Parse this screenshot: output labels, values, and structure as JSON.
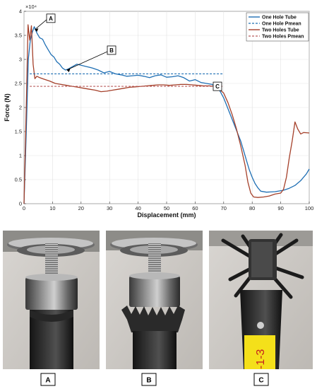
{
  "chart_data": {
    "type": "line",
    "xlabel": "Displacement (mm)",
    "ylabel": "Force (N)",
    "y_multiplier": "×10⁴",
    "xlim": [
      0,
      100
    ],
    "ylim": [
      0,
      4
    ],
    "xticks": [
      "0",
      "10",
      "20",
      "30",
      "40",
      "50",
      "60",
      "70",
      "80",
      "90",
      "100"
    ],
    "yticks": [
      "0",
      "0.5",
      "1",
      "1.5",
      "2",
      "2.5",
      "3",
      "3.5",
      "4"
    ],
    "legend_position": "top-right",
    "series": [
      {
        "name": "One Hole Tube",
        "color": "#1f6fb4",
        "style": "solid",
        "x": [
          0,
          0.8,
          1.5,
          2.2,
          3.0,
          3.6,
          4.5,
          5.5,
          6.5,
          7.5,
          8.5,
          9.5,
          10.5,
          11.5,
          12.5,
          13.5,
          14.5,
          15.5,
          17,
          18.5,
          20,
          22,
          24,
          26,
          28,
          30,
          32,
          34,
          36,
          38,
          40,
          42,
          44,
          46,
          48,
          50,
          52,
          54,
          56,
          58,
          60,
          62,
          64,
          66,
          68,
          70,
          72,
          74,
          76,
          77,
          78,
          79,
          80,
          81,
          82,
          83,
          85,
          88,
          91,
          93,
          95,
          97,
          99,
          100
        ],
        "y": [
          0,
          1.5,
          3.0,
          3.4,
          3.58,
          3.68,
          3.55,
          3.45,
          3.42,
          3.3,
          3.2,
          3.1,
          3.05,
          2.95,
          2.9,
          2.82,
          2.78,
          2.8,
          2.85,
          2.9,
          2.88,
          2.85,
          2.82,
          2.78,
          2.72,
          2.75,
          2.7,
          2.68,
          2.65,
          2.66,
          2.67,
          2.65,
          2.62,
          2.66,
          2.68,
          2.63,
          2.64,
          2.66,
          2.62,
          2.55,
          2.58,
          2.52,
          2.5,
          2.48,
          2.42,
          2.2,
          1.9,
          1.6,
          1.3,
          1.1,
          0.9,
          0.7,
          0.55,
          0.42,
          0.33,
          0.26,
          0.24,
          0.25,
          0.28,
          0.32,
          0.38,
          0.48,
          0.62,
          0.72
        ]
      },
      {
        "name": "One Hole Pmean",
        "color": "#1f6fb4",
        "style": "dashed",
        "x": [
          2,
          70
        ],
        "y": [
          2.7,
          2.7
        ]
      },
      {
        "name": "Two Holes Tube",
        "color": "#a5402a",
        "style": "solid",
        "x": [
          0,
          0.8,
          1.4,
          2.0,
          2.6,
          3.2,
          3.8,
          4.5,
          5.5,
          6.5,
          7.5,
          9,
          11,
          13,
          15,
          17,
          19,
          21,
          23,
          25,
          27,
          29,
          31,
          33,
          35,
          37,
          39,
          41,
          43,
          45,
          47,
          49,
          51,
          53,
          55,
          57,
          59,
          61,
          63,
          65,
          67,
          68.5,
          70,
          71.5,
          73,
          74.5,
          76,
          77.5,
          78.5,
          79.5,
          80.5,
          82,
          84,
          86,
          88,
          90,
          91,
          92,
          93,
          94,
          95,
          96,
          97,
          98,
          100
        ],
        "y": [
          0,
          2.0,
          3.72,
          3.4,
          3.7,
          2.9,
          2.6,
          2.65,
          2.62,
          2.6,
          2.58,
          2.55,
          2.5,
          2.48,
          2.46,
          2.44,
          2.42,
          2.4,
          2.38,
          2.36,
          2.33,
          2.34,
          2.36,
          2.38,
          2.4,
          2.42,
          2.43,
          2.44,
          2.45,
          2.46,
          2.47,
          2.47,
          2.46,
          2.47,
          2.48,
          2.48,
          2.47,
          2.46,
          2.45,
          2.45,
          2.44,
          2.38,
          2.3,
          2.1,
          1.85,
          1.55,
          1.2,
          0.8,
          0.45,
          0.22,
          0.14,
          0.13,
          0.14,
          0.16,
          0.2,
          0.22,
          0.3,
          0.55,
          0.95,
          1.3,
          1.7,
          1.55,
          1.45,
          1.48,
          1.47
        ]
      },
      {
        "name": "Two Holes Pmean",
        "color": "#b85a5a",
        "style": "dashed",
        "x": [
          2,
          70
        ],
        "y": [
          2.44,
          2.44
        ]
      }
    ],
    "annotations": [
      {
        "label": "A",
        "x": 3.8,
        "y": 3.62
      },
      {
        "label": "B",
        "x": 15,
        "y": 2.78
      },
      {
        "label": "C",
        "x": 68,
        "y": 2.44
      }
    ]
  },
  "photos": [
    {
      "label": "A",
      "caption_label": "A",
      "sticker": ""
    },
    {
      "label": "B",
      "caption_label": "B",
      "sticker": ""
    },
    {
      "label": "C",
      "caption_label": "C",
      "sticker": "-1-3"
    }
  ]
}
